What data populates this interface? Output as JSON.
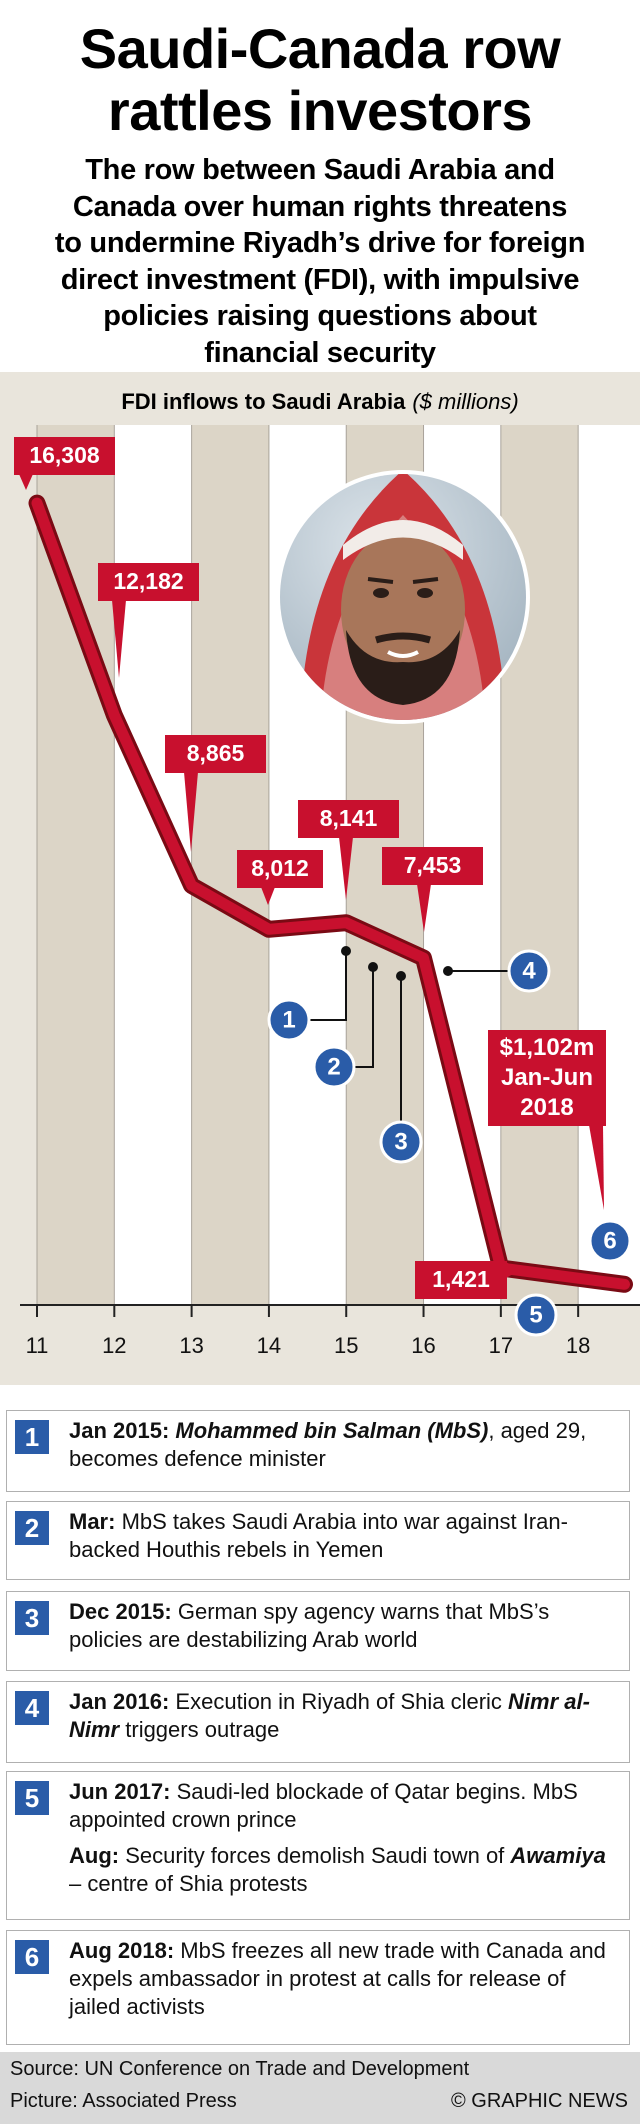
{
  "header": {
    "title_lines": [
      "Saudi-Canada row",
      "rattles investors"
    ],
    "subtitle_lines": [
      "The row between Saudi Arabia and",
      "Canada over human rights threatens",
      "to undermine Riyadh’s drive for foreign",
      "direct investment (FDI), with impulsive",
      "policies raising questions about",
      "financial security"
    ]
  },
  "chart_data": {
    "type": "line",
    "title": "FDI inflows to Saudi Arabia",
    "unit": "($ millions)",
    "x": [
      11,
      12,
      13,
      14,
      15,
      16,
      17,
      18.6
    ],
    "values": [
      16308,
      12182,
      8865,
      8012,
      8141,
      7453,
      1421,
      1102
    ],
    "value_labels": [
      "16,308",
      "12,182",
      "8,865",
      "8,012",
      "8,141",
      "7,453",
      "1,421",
      "$1,102m"
    ],
    "last_period": "Jan-Jun 2018",
    "color": "#c8102e",
    "xlim": [
      11,
      18.8
    ],
    "xticks": [
      11,
      12,
      13,
      14,
      15,
      16,
      17,
      18
    ],
    "ylim": [
      700,
      17400
    ]
  },
  "events": [
    {
      "number": "1",
      "items": [
        {
          "date": "Jan 2015:",
          "emph": "Mohammed bin Salman (MbS)",
          "after": ", aged 29, becomes defence minister"
        }
      ]
    },
    {
      "number": "2",
      "items": [
        {
          "date": "Mar:",
          "text": "MbS takes Saudi Arabia into war against Iran-backed Houthis rebels in Yemen"
        }
      ]
    },
    {
      "number": "3",
      "items": [
        {
          "date": "Dec 2015:",
          "text": "German spy agency warns that MbS’s policies are destabilizing Arab world"
        }
      ]
    },
    {
      "number": "4",
      "items": [
        {
          "date": "Jan 2016:",
          "text": "Execution in Riyadh of Shia cleric",
          "emph": "Nimr al-Nimr",
          "after": "triggers outrage"
        }
      ]
    },
    {
      "number": "5",
      "items": [
        {
          "date": "Jun 2017:",
          "text": "Saudi-led blockade of Qatar begins. MbS appointed crown prince"
        },
        {
          "date": "Aug:",
          "text": "Security forces demolish Saudi town of",
          "emph": "Awamiya",
          "after": "– centre of Shia protests"
        }
      ]
    },
    {
      "number": "6",
      "items": [
        {
          "date": "Aug 2018:",
          "text": "MbS freezes all new trade with Canada and expels ambassador in protest at calls for release of jailed activists"
        }
      ]
    }
  ],
  "footer": {
    "source": "Source: UN Conference on Trade and Development",
    "picture": "Picture: Associated Press",
    "credit": "© GRAPHIC NEWS"
  }
}
